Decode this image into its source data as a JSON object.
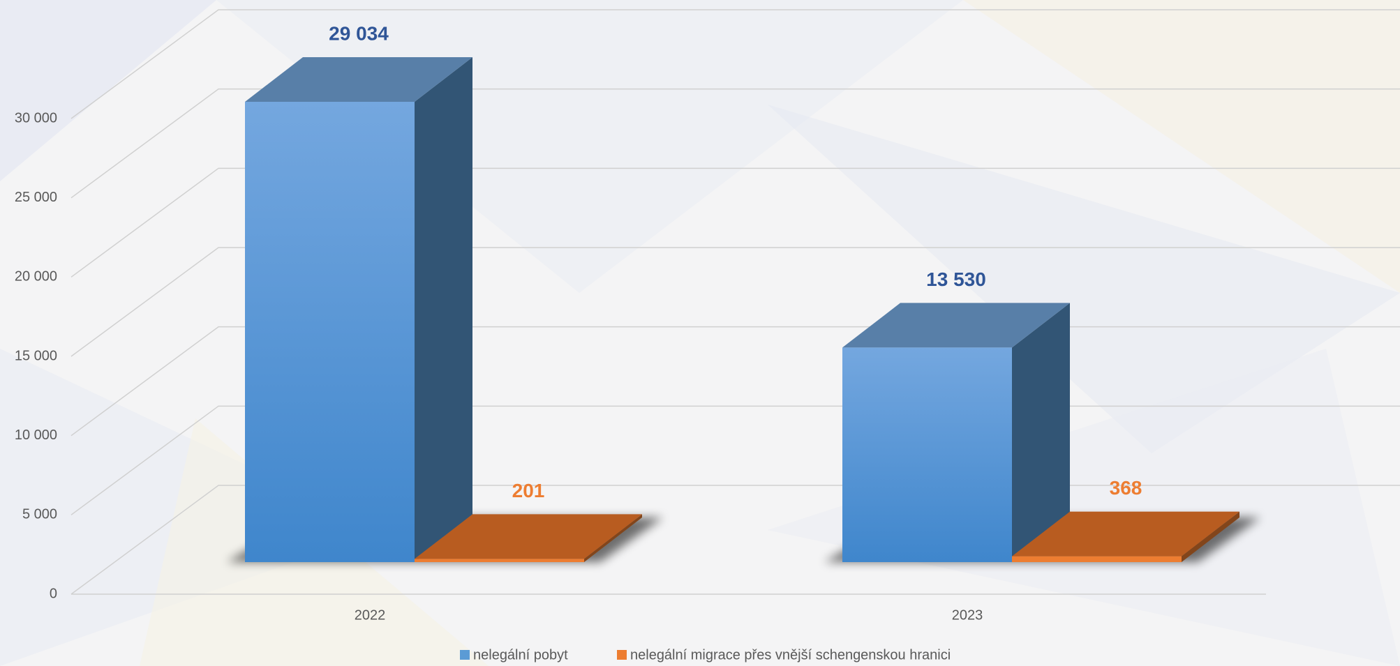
{
  "chart_data": {
    "type": "bar3d",
    "categories": [
      "2022",
      "2023"
    ],
    "series": [
      {
        "name": "nelegální pobyt",
        "color": "#5b9bd5",
        "values": [
          29034,
          13530
        ],
        "value_labels": [
          "29 034",
          "13 530"
        ]
      },
      {
        "name": "nelegální migrace přes vnější schengenskou hranici",
        "color": "#ed7d31",
        "values": [
          201,
          368
        ]
      }
    ],
    "ylim": [
      0,
      30000
    ],
    "yticks": [
      0,
      {
        "value": 5000,
        "label": "5 000"
      },
      {
        "value": 10000,
        "label": "10 000"
      },
      {
        "value": 15000,
        "label": "15 000"
      },
      {
        "value": 20000,
        "label": "20 000"
      },
      {
        "value": 25000,
        "label": "25 000"
      },
      {
        "value": 30000,
        "label": "30 000"
      }
    ],
    "grid": true,
    "legend": "bottom"
  }
}
